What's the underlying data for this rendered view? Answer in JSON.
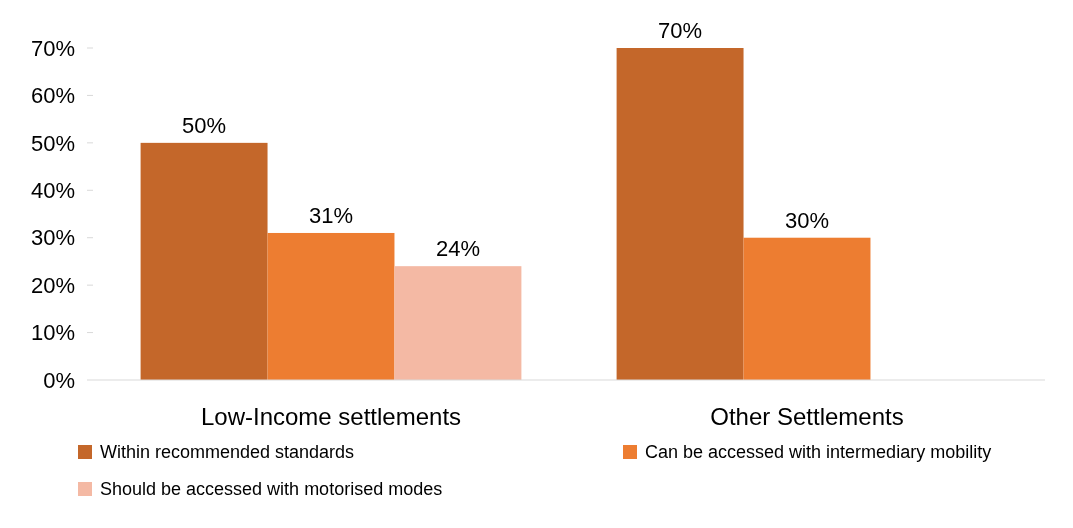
{
  "chart_data": {
    "type": "bar",
    "categories": [
      "Low-Income settlements",
      "Other Settlements"
    ],
    "series": [
      {
        "name": "Within recommended standards",
        "color": "#c4672a",
        "values": [
          50,
          70
        ]
      },
      {
        "name": "Can be accessed with intermediary mobility",
        "color": "#ed7d31",
        "values": [
          31,
          30
        ]
      },
      {
        "name": "Should be accessed with motorised modes",
        "color": "#f4b9a4",
        "values": [
          24,
          null
        ]
      }
    ],
    "ylim": [
      0,
      70
    ],
    "yticks": [
      {
        "value": 0,
        "label": "0%"
      },
      {
        "value": 10,
        "label": "10%"
      },
      {
        "value": 20,
        "label": "20%"
      },
      {
        "value": 30,
        "label": "30%"
      },
      {
        "value": 40,
        "label": "40%"
      },
      {
        "value": 50,
        "label": "50%"
      },
      {
        "value": 60,
        "label": "60%"
      },
      {
        "value": 70,
        "label": "70%"
      }
    ],
    "value_labels": [
      [
        "50%",
        "70%"
      ],
      [
        "31%",
        "30%"
      ],
      [
        "24%",
        null
      ]
    ],
    "legend": "bottom",
    "grid": false
  }
}
